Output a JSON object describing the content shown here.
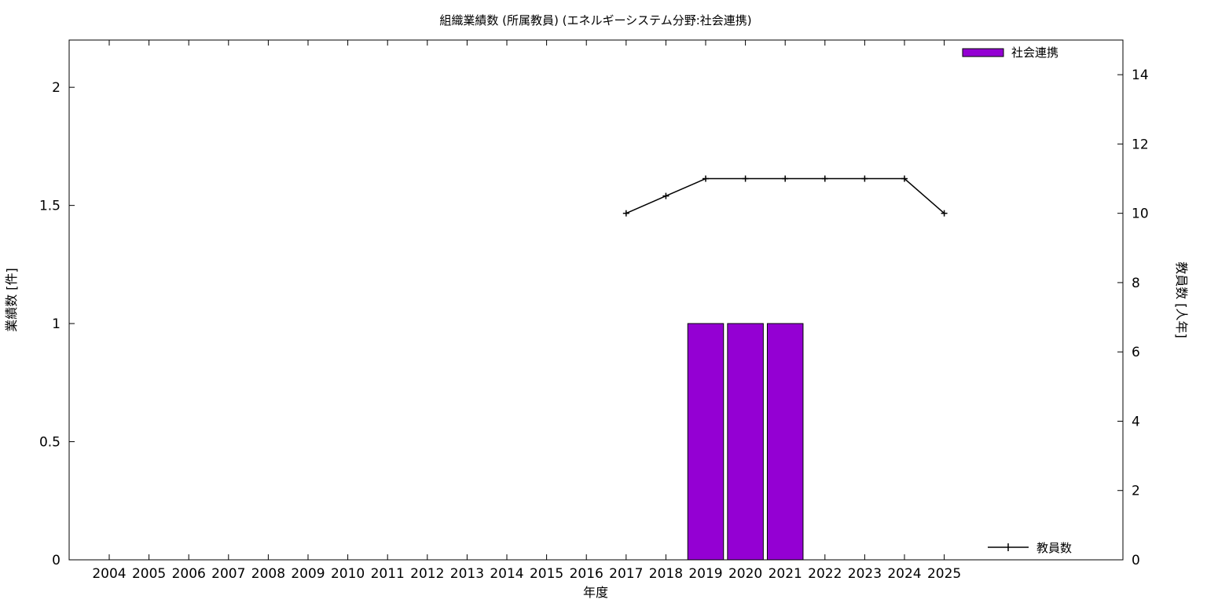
{
  "chart_data": {
    "type": "bar",
    "title": "組織業績数 (所属教員) (エネルギーシステム分野:社会連携)",
    "xlabel": "年度",
    "ylabel": "業績数 [件]",
    "y2label": "教員数 [人年]",
    "categories": [
      "2004",
      "2005",
      "2006",
      "2007",
      "2008",
      "2009",
      "2010",
      "2011",
      "2012",
      "2013",
      "2014",
      "2015",
      "2016",
      "2017",
      "2018",
      "2019",
      "2020",
      "2021",
      "2022",
      "2023",
      "2024",
      "2025"
    ],
    "ylim": [
      0,
      2.2
    ],
    "y_ticks": [
      {
        "v": 0,
        "label": "0"
      },
      {
        "v": 0.5,
        "label": "0.5"
      },
      {
        "v": 1,
        "label": "1"
      },
      {
        "v": 1.5,
        "label": "1.5"
      },
      {
        "v": 2,
        "label": "2"
      }
    ],
    "y2lim": [
      0,
      15
    ],
    "y2_ticks": [
      {
        "v": 0,
        "label": "0"
      },
      {
        "v": 2,
        "label": "2"
      },
      {
        "v": 4,
        "label": "4"
      },
      {
        "v": 6,
        "label": "6"
      },
      {
        "v": 8,
        "label": "8"
      },
      {
        "v": 10,
        "label": "10"
      },
      {
        "v": 12,
        "label": "12"
      },
      {
        "v": 14,
        "label": "14"
      }
    ],
    "legend_position": "top-right",
    "series": [
      {
        "name": "社会連携",
        "kind": "bar",
        "axis": "y",
        "color": "#9400d3",
        "values": [
          0,
          0,
          0,
          0,
          0,
          0,
          0,
          0,
          0,
          0,
          0,
          0,
          0,
          0,
          0,
          1,
          1,
          1,
          0,
          0,
          0,
          0
        ]
      },
      {
        "name": "教員数",
        "kind": "line",
        "axis": "y2",
        "color": "#000000",
        "legend_position": "bottom-right",
        "points": [
          {
            "x": "2017",
            "y": 10
          },
          {
            "x": "2018",
            "y": 10.5
          },
          {
            "x": "2019",
            "y": 11
          },
          {
            "x": "2020",
            "y": 11
          },
          {
            "x": "2021",
            "y": 11
          },
          {
            "x": "2022",
            "y": 11
          },
          {
            "x": "2023",
            "y": 11
          },
          {
            "x": "2024",
            "y": 11
          },
          {
            "x": "2025",
            "y": 10
          }
        ]
      }
    ],
    "grid": false
  }
}
